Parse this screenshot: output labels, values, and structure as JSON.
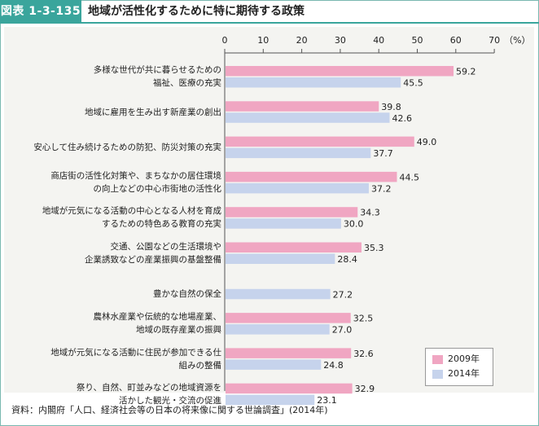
{
  "header": {
    "figure_label": "図表 1-3-135",
    "title": "地域が活性化するために特に期待する政策"
  },
  "source_note": "資料：内閣府「人口、経済社会等の日本の将来像に関する世論調査」(2014年)",
  "colors": {
    "accent": "#3aa59c",
    "series_2009": "#f0a6c2",
    "series_2014": "#c6d3ec"
  },
  "chart_data": {
    "type": "bar",
    "orientation": "horizontal",
    "unit_label": "（%）",
    "xlim": [
      0,
      70
    ],
    "ticks": [
      0,
      10,
      20,
      30,
      40,
      50,
      60,
      70
    ],
    "tick_labels": [
      "0",
      "10",
      "20",
      "30",
      "40",
      "50",
      "60",
      "70"
    ],
    "categories": [
      [
        "多様な世代が共に暮らせるための",
        "福祉、医療の充実"
      ],
      [
        "地域に雇用を生み出す新産業の創出"
      ],
      [
        "安心して住み続けるための防犯、防災対策の充実"
      ],
      [
        "商店街の活性化対策や、まちなかの居住環境",
        "の向上などの中心市街地の活性化"
      ],
      [
        "地域が元気になる活動の中心となる人材を育成",
        "するための特色ある教育の充実"
      ],
      [
        "交通、公園などの生活環境や",
        "企業誘致などの産業振興の基盤整備"
      ],
      [
        "豊かな自然の保全"
      ],
      [
        "農林水産業や伝統的な地場産業、",
        "地域の既存産業の振興"
      ],
      [
        "地域が元気になる活動に住民が参加できる仕",
        "組みの整備"
      ],
      [
        "祭り、自然、町並みなどの地域資源を",
        "活かした観光・交流の促進"
      ]
    ],
    "series": [
      {
        "name": "2009年",
        "values": [
          59.2,
          39.8,
          49.0,
          44.5,
          34.3,
          35.3,
          null,
          32.5,
          32.6,
          32.9
        ]
      },
      {
        "name": "2014年",
        "values": [
          45.5,
          42.6,
          37.7,
          37.2,
          30.0,
          28.4,
          27.2,
          27.0,
          24.8,
          23.1
        ]
      }
    ],
    "value_labels": [
      [
        "59.2",
        "39.8",
        "49.0",
        "44.5",
        "34.3",
        "35.3",
        "",
        "32.5",
        "32.6",
        "32.9"
      ],
      [
        "45.5",
        "42.6",
        "37.7",
        "37.2",
        "30.0",
        "28.4",
        "27.2",
        "27.0",
        "24.8",
        "23.1"
      ]
    ],
    "legend": {
      "position": "bottom-right",
      "labels": [
        "2009年",
        "2014年"
      ]
    }
  }
}
